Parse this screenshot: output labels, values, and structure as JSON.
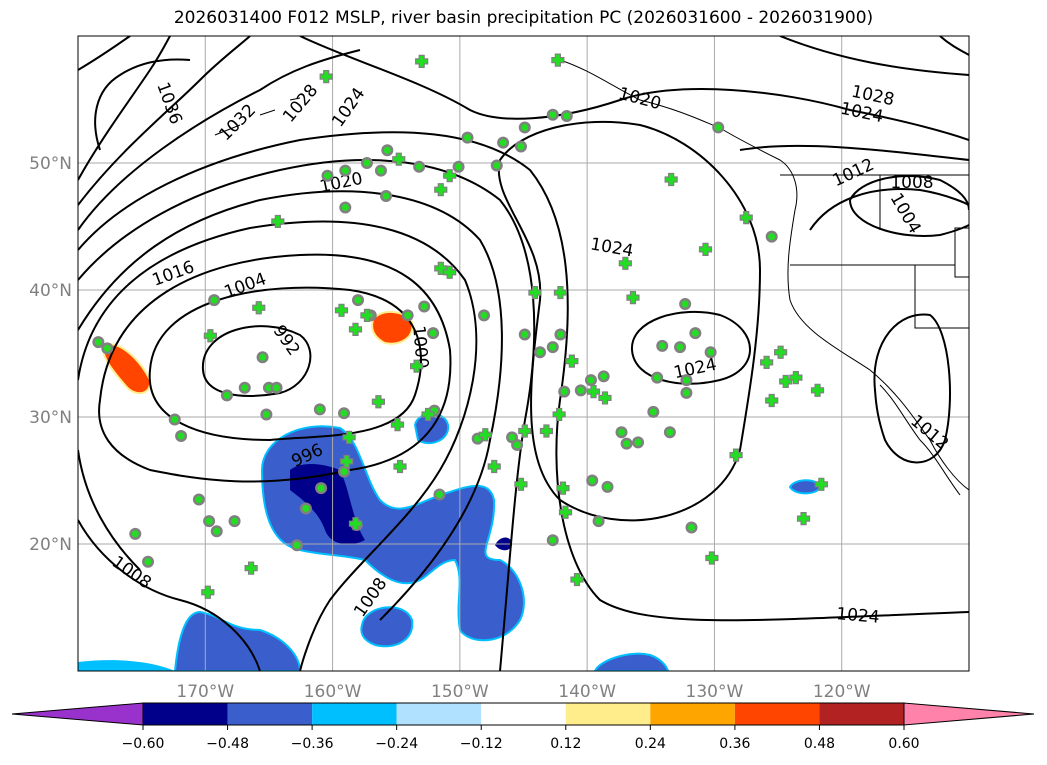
{
  "title": "2026031400 F012 MSLP, river basin precipitation PC (2026031600 - 2026031900)",
  "chart_data": {
    "type": "map",
    "extent": {
      "lon": [
        -180,
        -110
      ],
      "lat": [
        10,
        60
      ]
    },
    "grid": true,
    "lon_ticks": [
      {
        "value": -170,
        "label": "170°W"
      },
      {
        "value": -160,
        "label": "160°W"
      },
      {
        "value": -150,
        "label": "150°W"
      },
      {
        "value": -140,
        "label": "140°W"
      },
      {
        "value": -130,
        "label": "130°W"
      },
      {
        "value": -120,
        "label": "120°W"
      }
    ],
    "lat_ticks": [
      {
        "value": 20,
        "label": "20°N"
      },
      {
        "value": 30,
        "label": "30°N"
      },
      {
        "value": 40,
        "label": "40°N"
      },
      {
        "value": 50,
        "label": "50°N"
      }
    ],
    "colorbar": {
      "levels": [
        "-0.60",
        "-0.48",
        "-0.36",
        "-0.24",
        "-0.12",
        "0.12",
        "0.24",
        "0.36",
        "0.48",
        "0.60"
      ],
      "colors": [
        "#9932CC",
        "#00008B",
        "#3A5FCD",
        "#00BFFF",
        "#B0E2FF",
        "#FFFFFF",
        "#FFEC8B",
        "#FFA500",
        "#FF4500",
        "#B22222",
        "#FF82AB"
      ],
      "extend": "both"
    },
    "mslp_contour_labels": [
      "1036",
      "1032",
      "1028",
      "1024",
      "1020",
      "1016",
      "1004",
      "992",
      "1000",
      "996",
      "1008",
      "1008",
      "1020",
      "1024",
      "1028",
      "1024",
      "1012",
      "1008",
      "1004",
      "1024",
      "1024",
      "1012",
      "1012"
    ],
    "stations_circle": [
      [
        -178.4,
        35.9
      ],
      [
        -177.7,
        35.4
      ],
      [
        -175.5,
        20.8
      ],
      [
        -174.5,
        18.6
      ],
      [
        -172.4,
        29.8
      ],
      [
        -171.9,
        28.5
      ],
      [
        -170.5,
        23.5
      ],
      [
        -169.7,
        21.8
      ],
      [
        -169.1,
        21.0
      ],
      [
        -167.7,
        21.8
      ],
      [
        -169.3,
        39.2
      ],
      [
        -168.3,
        31.7
      ],
      [
        -166.9,
        32.3
      ],
      [
        -165.5,
        34.7
      ],
      [
        -165.0,
        32.3
      ],
      [
        -164.4,
        32.3
      ],
      [
        -165.2,
        30.2
      ],
      [
        -161.0,
        30.6
      ],
      [
        -159.1,
        30.3
      ],
      [
        -159.1,
        25.7
      ],
      [
        -160.9,
        24.4
      ],
      [
        -162.1,
        22.8
      ],
      [
        -162.8,
        19.9
      ],
      [
        -158.1,
        21.5
      ],
      [
        -160.4,
        49.0
      ],
      [
        -159.0,
        46.5
      ],
      [
        -159.0,
        49.4
      ],
      [
        -157.3,
        50.0
      ],
      [
        -156.2,
        49.4
      ],
      [
        -155.7,
        51.0
      ],
      [
        -155.8,
        47.4
      ],
      [
        -158.0,
        39.2
      ],
      [
        -157.0,
        38.0
      ],
      [
        -154.1,
        38.0
      ],
      [
        -152.8,
        38.7
      ],
      [
        -152.1,
        36.6
      ],
      [
        -152.0,
        30.5
      ],
      [
        -151.6,
        23.9
      ],
      [
        -153.2,
        49.7
      ],
      [
        -150.1,
        49.7
      ],
      [
        -149.4,
        52.0
      ],
      [
        -147.1,
        49.8
      ],
      [
        -146.6,
        51.6
      ],
      [
        -145.2,
        51.3
      ],
      [
        -144.9,
        52.8
      ],
      [
        -142.7,
        53.8
      ],
      [
        -141.6,
        53.7
      ],
      [
        -148.1,
        38.0
      ],
      [
        -148.6,
        28.3
      ],
      [
        -145.9,
        28.4
      ],
      [
        -145.5,
        27.8
      ],
      [
        -144.9,
        36.5
      ],
      [
        -143.7,
        35.1
      ],
      [
        -142.7,
        35.5
      ],
      [
        -142.1,
        36.5
      ],
      [
        -141.8,
        32.0
      ],
      [
        -140.5,
        32.1
      ],
      [
        -139.7,
        32.9
      ],
      [
        -138.7,
        33.2
      ],
      [
        -139.6,
        25.0
      ],
      [
        -138.4,
        24.5
      ],
      [
        -139.1,
        21.8
      ],
      [
        -142.7,
        20.3
      ],
      [
        -137.3,
        28.8
      ],
      [
        -136.9,
        27.9
      ],
      [
        -136.0,
        28.0
      ],
      [
        -134.1,
        35.6
      ],
      [
        -132.7,
        35.5
      ],
      [
        -132.2,
        32.9
      ],
      [
        -132.2,
        31.9
      ],
      [
        -134.5,
        33.1
      ],
      [
        -134.8,
        30.4
      ],
      [
        -133.5,
        28.8
      ],
      [
        -132.3,
        38.9
      ],
      [
        -131.5,
        36.6
      ],
      [
        -130.3,
        35.1
      ],
      [
        -131.8,
        21.3
      ],
      [
        -129.7,
        52.8
      ],
      [
        -125.5,
        44.2
      ]
    ],
    "stations_plus": [
      [
        -160.5,
        56.8
      ],
      [
        -153.0,
        58.0
      ],
      [
        -142.3,
        58.1
      ],
      [
        -164.3,
        45.4
      ],
      [
        -165.8,
        38.6
      ],
      [
        -169.6,
        36.4
      ],
      [
        -151.5,
        41.7
      ],
      [
        -150.8,
        41.4
      ],
      [
        -151.5,
        47.9
      ],
      [
        -150.8,
        49.0
      ],
      [
        -154.8,
        50.3
      ],
      [
        -144.1,
        39.8
      ],
      [
        -142.1,
        39.8
      ],
      [
        -141.2,
        34.4
      ],
      [
        -139.5,
        32.0
      ],
      [
        -138.6,
        31.5
      ],
      [
        -136.4,
        39.4
      ],
      [
        -137.0,
        42.1
      ],
      [
        -133.4,
        48.7
      ],
      [
        -130.7,
        43.2
      ],
      [
        -127.5,
        45.7
      ],
      [
        -124.8,
        35.1
      ],
      [
        -125.9,
        34.3
      ],
      [
        -124.4,
        32.8
      ],
      [
        -123.6,
        33.1
      ],
      [
        -121.9,
        32.1
      ],
      [
        -121.6,
        24.7
      ],
      [
        -123.0,
        22.0
      ],
      [
        -125.5,
        31.3
      ],
      [
        -128.3,
        27.0
      ],
      [
        -130.2,
        18.9
      ],
      [
        -140.8,
        17.2
      ],
      [
        -141.9,
        24.4
      ],
      [
        -141.7,
        22.5
      ],
      [
        -142.2,
        30.2
      ],
      [
        -143.2,
        28.9
      ],
      [
        -144.9,
        28.9
      ],
      [
        -147.3,
        26.1
      ],
      [
        -145.2,
        24.7
      ],
      [
        -148.0,
        28.6
      ],
      [
        -152.5,
        30.2
      ],
      [
        -154.7,
        26.1
      ],
      [
        -154.9,
        29.4
      ],
      [
        -156.4,
        31.2
      ],
      [
        -158.7,
        28.4
      ],
      [
        -158.9,
        26.5
      ],
      [
        -158.2,
        21.6
      ],
      [
        -166.4,
        18.1
      ],
      [
        -169.8,
        16.2
      ],
      [
        -153.4,
        34.0
      ],
      [
        -157.3,
        38.0
      ],
      [
        -158.2,
        36.9
      ],
      [
        -159.3,
        38.4
      ]
    ]
  }
}
